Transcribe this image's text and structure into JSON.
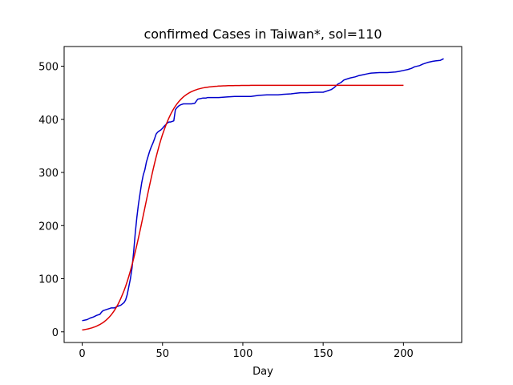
{
  "chart_data": {
    "type": "line",
    "title": "confirmed Cases in Taiwan*, sol=110",
    "xlabel": "Day",
    "ylabel": "",
    "xlim": [
      -11.25,
      236.25
    ],
    "ylim": [
      -20,
      537
    ],
    "xticks": [
      0,
      50,
      100,
      150,
      200
    ],
    "yticks": [
      0,
      100,
      200,
      300,
      400,
      500
    ],
    "grid": false,
    "series": [
      {
        "color": "#0000cc",
        "x": [
          0,
          3,
          5,
          7,
          9,
          11,
          12,
          13,
          16,
          18,
          20,
          22,
          24,
          26,
          27,
          28,
          29,
          30,
          31,
          32,
          33,
          34,
          35,
          36,
          37,
          38,
          39,
          40,
          41,
          42,
          43,
          44,
          45,
          46,
          47,
          48,
          49,
          50,
          51,
          52,
          53,
          54,
          55,
          56,
          57,
          58,
          59,
          60,
          61,
          62,
          63,
          64,
          65,
          66,
          68,
          70,
          72,
          75,
          77,
          78,
          80,
          85,
          90,
          95,
          100,
          105,
          110,
          115,
          120,
          122,
          125,
          130,
          133,
          136,
          140,
          145,
          150,
          155,
          157,
          159,
          161,
          163,
          165,
          167,
          170,
          172,
          175,
          178,
          180,
          185,
          190,
          195,
          197,
          200,
          203,
          205,
          207,
          210,
          212,
          215,
          218,
          220,
          223,
          225
        ],
        "y": [
          21,
          23,
          26,
          28,
          31,
          33,
          37,
          40,
          43,
          45,
          45,
          48,
          50,
          55,
          60,
          70,
          85,
          100,
          120,
          150,
          185,
          215,
          240,
          260,
          280,
          295,
          305,
          320,
          330,
          340,
          348,
          355,
          363,
          372,
          376,
          378,
          380,
          383,
          387,
          390,
          393,
          395,
          395,
          396,
          397,
          418,
          422,
          425,
          427,
          428,
          429,
          429,
          429,
          429,
          429,
          430,
          438,
          440,
          440,
          441,
          441,
          441,
          442,
          443,
          443,
          443,
          445,
          446,
          446,
          446,
          447,
          448,
          449,
          450,
          450,
          451,
          451,
          456,
          460,
          466,
          469,
          474,
          476,
          478,
          480,
          482,
          484,
          486,
          487,
          488,
          488,
          489,
          490,
          492,
          494,
          496,
          499,
          501,
          504,
          507,
          509,
          510,
          511,
          514
        ]
      },
      {
        "color": "#dd0000",
        "model": {
          "K": 464,
          "r": 0.1248,
          "t0": 38.9
        },
        "x_range": [
          0,
          200
        ]
      }
    ]
  }
}
